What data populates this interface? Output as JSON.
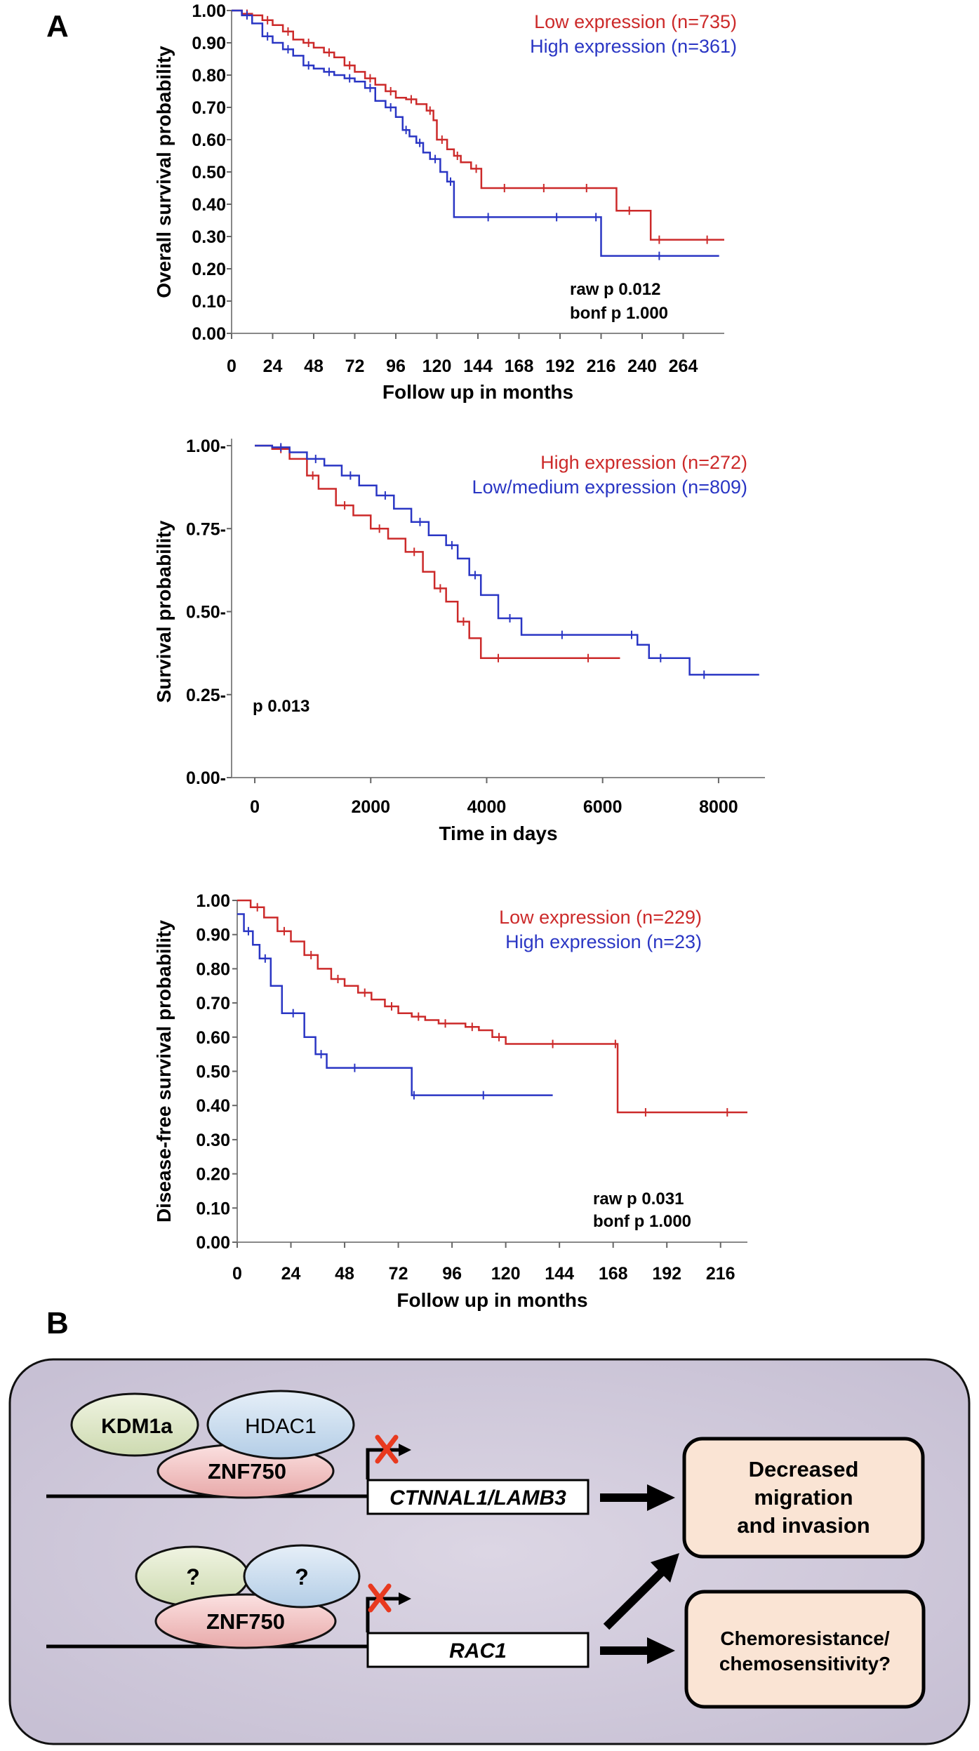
{
  "panel_labels": {
    "a": "A",
    "b": "B"
  },
  "chart_data": [
    {
      "type": "line",
      "subtype": "kaplan-meier",
      "ylabel": "Overall survival probability",
      "xlabel": "Follow up in months",
      "xlim": [
        0,
        288
      ],
      "ylim": [
        0,
        1
      ],
      "xticks": [
        0,
        24,
        48,
        72,
        96,
        120,
        144,
        168,
        192,
        216,
        240,
        264
      ],
      "xtick_labels": [
        "0",
        "24",
        "48",
        "72",
        "96",
        "120",
        "144",
        "168",
        "192",
        "216",
        "240",
        "264"
      ],
      "yticks": [
        0,
        0.1,
        0.2,
        0.3,
        0.4,
        0.5,
        0.6,
        0.7,
        0.8,
        0.9,
        1.0
      ],
      "ytick_labels": [
        "0.00",
        "0.10",
        "0.20",
        "0.30",
        "0.40",
        "0.50",
        "0.60",
        "0.70",
        "0.80",
        "0.90",
        "1.00"
      ],
      "legend_position": "top-right",
      "annotation_position": "bottom-right",
      "annotations": [
        "raw p 0.012",
        "bonf p 1.000"
      ],
      "series": [
        {
          "name": "Low expression (n=735)",
          "color": "#cc2a2a",
          "x": [
            0,
            6,
            12,
            18,
            24,
            30,
            36,
            42,
            48,
            54,
            60,
            66,
            72,
            78,
            84,
            90,
            96,
            102,
            108,
            114,
            118,
            120,
            126,
            130,
            134,
            140,
            146,
            154,
            165,
            175,
            190,
            200,
            215,
            225,
            240,
            245,
            255,
            268,
            288
          ],
          "y": [
            1.0,
            0.99,
            0.985,
            0.97,
            0.955,
            0.935,
            0.91,
            0.9,
            0.885,
            0.87,
            0.855,
            0.83,
            0.81,
            0.79,
            0.77,
            0.75,
            0.73,
            0.725,
            0.71,
            0.69,
            0.66,
            0.6,
            0.57,
            0.55,
            0.53,
            0.51,
            0.45,
            0.45,
            0.45,
            0.45,
            0.45,
            0.45,
            0.45,
            0.38,
            0.38,
            0.29,
            0.29,
            0.29,
            0.29
          ]
        },
        {
          "name": "High expression (n=361)",
          "color": "#2a36c4",
          "x": [
            0,
            6,
            12,
            18,
            24,
            30,
            36,
            42,
            48,
            54,
            60,
            66,
            72,
            78,
            84,
            90,
            96,
            100,
            104,
            108,
            112,
            116,
            122,
            126,
            130,
            140,
            160,
            180,
            200,
            210,
            216,
            240,
            260,
            285
          ],
          "y": [
            1.0,
            0.985,
            0.96,
            0.92,
            0.9,
            0.88,
            0.86,
            0.83,
            0.82,
            0.81,
            0.8,
            0.79,
            0.78,
            0.76,
            0.72,
            0.7,
            0.67,
            0.63,
            0.61,
            0.59,
            0.56,
            0.54,
            0.5,
            0.47,
            0.36,
            0.36,
            0.36,
            0.36,
            0.36,
            0.36,
            0.24,
            0.24,
            0.24,
            0.24
          ]
        }
      ]
    },
    {
      "type": "line",
      "subtype": "kaplan-meier",
      "ylabel": "Survival probability",
      "xlabel": "Time in days",
      "xlim": [
        -400,
        8800
      ],
      "ylim": [
        0,
        1
      ],
      "xticks": [
        0,
        2000,
        4000,
        6000,
        8000
      ],
      "xtick_labels": [
        "0",
        "2000",
        "4000",
        "6000",
        "8000"
      ],
      "yticks": [
        0,
        0.25,
        0.5,
        0.75,
        1.0
      ],
      "ytick_labels": [
        "0.00-",
        "0.25-",
        "0.50-",
        "0.75-",
        "1.00-"
      ],
      "legend_position": "top-right",
      "annotation_position": "bottom-left",
      "annotations": [
        "p 0.013"
      ],
      "series": [
        {
          "name": "High expression (n=272)",
          "color": "#cc2a2a",
          "x": [
            0,
            300,
            600,
            900,
            1100,
            1400,
            1700,
            2000,
            2300,
            2600,
            2900,
            3100,
            3300,
            3500,
            3700,
            3900,
            4500,
            5200,
            6300
          ],
          "y": [
            1.0,
            0.99,
            0.96,
            0.91,
            0.87,
            0.82,
            0.79,
            0.75,
            0.72,
            0.68,
            0.62,
            0.57,
            0.53,
            0.47,
            0.42,
            0.36,
            0.36,
            0.36,
            0.36
          ]
        },
        {
          "name": "Low/medium expression (n=809)",
          "color": "#2a36c4",
          "x": [
            0,
            300,
            600,
            900,
            1200,
            1500,
            1800,
            2100,
            2400,
            2700,
            3000,
            3300,
            3500,
            3700,
            3900,
            4200,
            4600,
            5000,
            5600,
            6400,
            6600,
            6800,
            7200,
            7500,
            8000,
            8700
          ],
          "y": [
            1.0,
            0.995,
            0.98,
            0.96,
            0.94,
            0.91,
            0.88,
            0.85,
            0.81,
            0.77,
            0.73,
            0.7,
            0.66,
            0.61,
            0.55,
            0.48,
            0.43,
            0.43,
            0.43,
            0.43,
            0.4,
            0.36,
            0.36,
            0.31,
            0.31,
            0.31
          ]
        }
      ]
    },
    {
      "type": "line",
      "subtype": "kaplan-meier",
      "ylabel": "Disease-free survival probability",
      "xlabel": "Follow up in months",
      "xlim": [
        0,
        228
      ],
      "ylim": [
        0,
        1
      ],
      "xticks": [
        0,
        24,
        48,
        72,
        96,
        120,
        144,
        168,
        192,
        216
      ],
      "xtick_labels": [
        "0",
        "24",
        "48",
        "72",
        "96",
        "120",
        "144",
        "168",
        "192",
        "216"
      ],
      "yticks": [
        0,
        0.1,
        0.2,
        0.3,
        0.4,
        0.5,
        0.6,
        0.7,
        0.8,
        0.9,
        1.0
      ],
      "ytick_labels": [
        "0.00",
        "0.10",
        "0.20",
        "0.30",
        "0.40",
        "0.50",
        "0.60",
        "0.70",
        "0.80",
        "0.90",
        "1.00"
      ],
      "legend_position": "top-right",
      "annotation_position": "bottom-right",
      "annotations": [
        "raw p 0.031",
        "bonf p 1.000"
      ],
      "series": [
        {
          "name": "Low expression (n=229)",
          "color": "#cc2a2a",
          "x": [
            0,
            6,
            12,
            18,
            24,
            30,
            36,
            42,
            48,
            54,
            60,
            66,
            72,
            78,
            84,
            90,
            96,
            102,
            108,
            114,
            120,
            132,
            150,
            168,
            170,
            175,
            190,
            210,
            228
          ],
          "y": [
            1.0,
            0.98,
            0.95,
            0.91,
            0.88,
            0.84,
            0.8,
            0.77,
            0.75,
            0.73,
            0.71,
            0.69,
            0.67,
            0.66,
            0.65,
            0.64,
            0.64,
            0.63,
            0.62,
            0.6,
            0.58,
            0.58,
            0.58,
            0.58,
            0.38,
            0.38,
            0.38,
            0.38,
            0.38
          ]
        },
        {
          "name": "High expression (n=23)",
          "color": "#2a36c4",
          "x": [
            0,
            3,
            7,
            10,
            15,
            20,
            30,
            35,
            40,
            45,
            60,
            78,
            80,
            100,
            120,
            141
          ],
          "y": [
            0.96,
            0.91,
            0.87,
            0.83,
            0.75,
            0.67,
            0.6,
            0.55,
            0.51,
            0.51,
            0.51,
            0.43,
            0.43,
            0.43,
            0.43,
            0.43
          ]
        }
      ]
    }
  ],
  "diagram": {
    "top": {
      "kdm": "KDM1a",
      "hdac": "HDAC1",
      "znf": "ZNF750",
      "gene": "CTNNAL1/LAMB3",
      "outcome": [
        "Decreased",
        "migration",
        "and invasion"
      ]
    },
    "bottom": {
      "left_q": "?",
      "right_q": "?",
      "znf": "ZNF750",
      "gene": "RAC1",
      "outcome": [
        "Chemoresistance/",
        "chemosensitivity?"
      ]
    },
    "colors": {
      "background": "#d5cfdf",
      "kdm": "#dfe7c8",
      "hdac": "#c9dced",
      "znf": "#f0c4c4",
      "outcome": "#fae4d4",
      "x_mark": "#e8391f"
    }
  }
}
